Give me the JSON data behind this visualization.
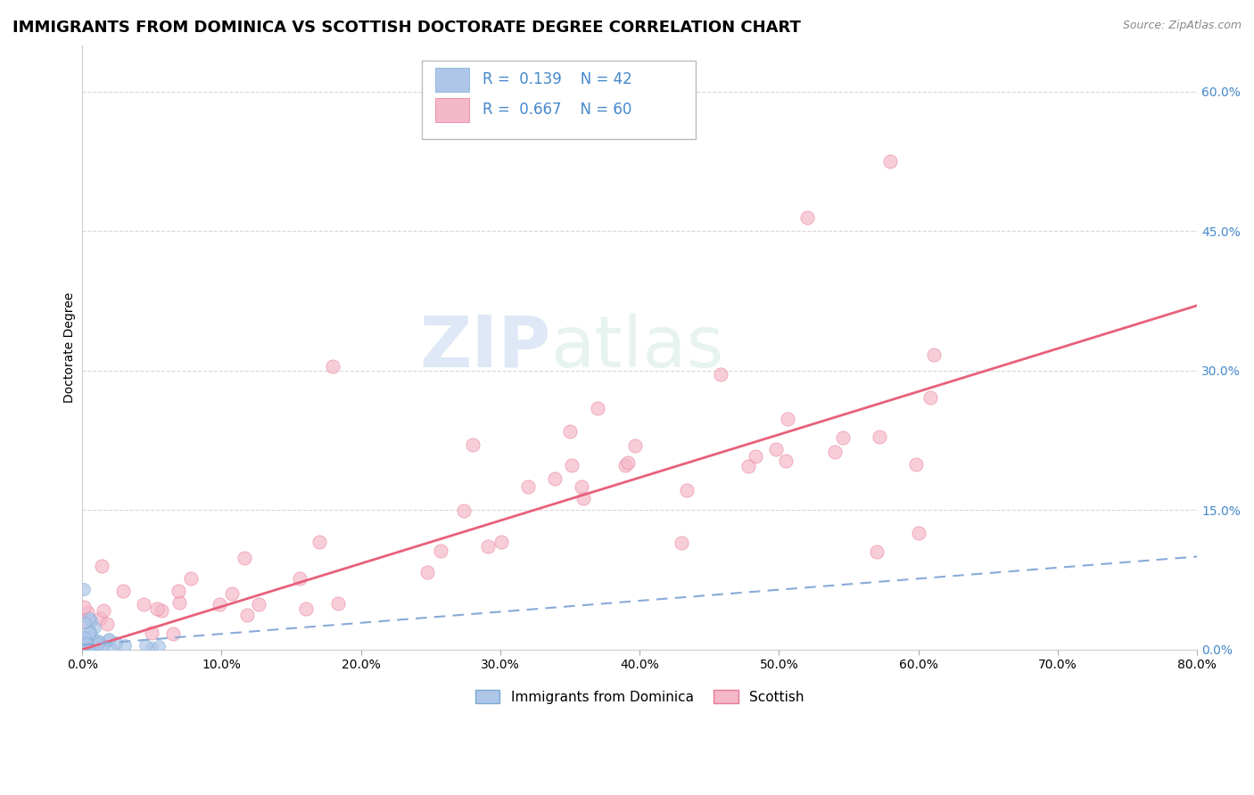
{
  "title": "IMMIGRANTS FROM DOMINICA VS SCOTTISH DOCTORATE DEGREE CORRELATION CHART",
  "source": "Source: ZipAtlas.com",
  "ylabel": "Doctorate Degree",
  "xlim": [
    0.0,
    0.8
  ],
  "ylim": [
    0.0,
    0.65
  ],
  "xticks": [
    0.0,
    0.1,
    0.2,
    0.3,
    0.4,
    0.5,
    0.6,
    0.7,
    0.8
  ],
  "xtick_labels": [
    "0.0%",
    "10.0%",
    "20.0%",
    "30.0%",
    "40.0%",
    "50.0%",
    "60.0%",
    "70.0%",
    "80.0%"
  ],
  "yticks": [
    0.0,
    0.15,
    0.3,
    0.45,
    0.6
  ],
  "ytick_labels": [
    "0.0%",
    "15.0%",
    "30.0%",
    "45.0%",
    "60.0%"
  ],
  "R1": 0.139,
  "N1": 42,
  "R2": 0.667,
  "N2": 60,
  "series1_color": "#aec6e8",
  "series1_edge": "#7aaad0",
  "series2_color": "#f4b8c8",
  "series2_edge": "#e87898",
  "series1_line_color": "#88aad8",
  "series2_line_color": "#e8607a",
  "legend_label1": "Immigrants from Dominica",
  "legend_label2": "Scottish",
  "watermark_zip": "ZIP",
  "watermark_atlas": "atlas",
  "title_fontsize": 13,
  "label_fontsize": 10,
  "tick_fontsize": 10,
  "tick_color_y": "#4488cc",
  "background_color": "#ffffff",
  "grid_color": "#cccccc",
  "legend_text_color": "#4488cc",
  "source_color": "#888888",
  "pink_line_start_x": 0.0,
  "pink_line_start_y": 0.0,
  "pink_line_end_x": 0.8,
  "pink_line_end_y": 0.37,
  "blue_line_start_x": 0.0,
  "blue_line_start_y": 0.005,
  "blue_line_end_x": 0.8,
  "blue_line_end_y": 0.1
}
